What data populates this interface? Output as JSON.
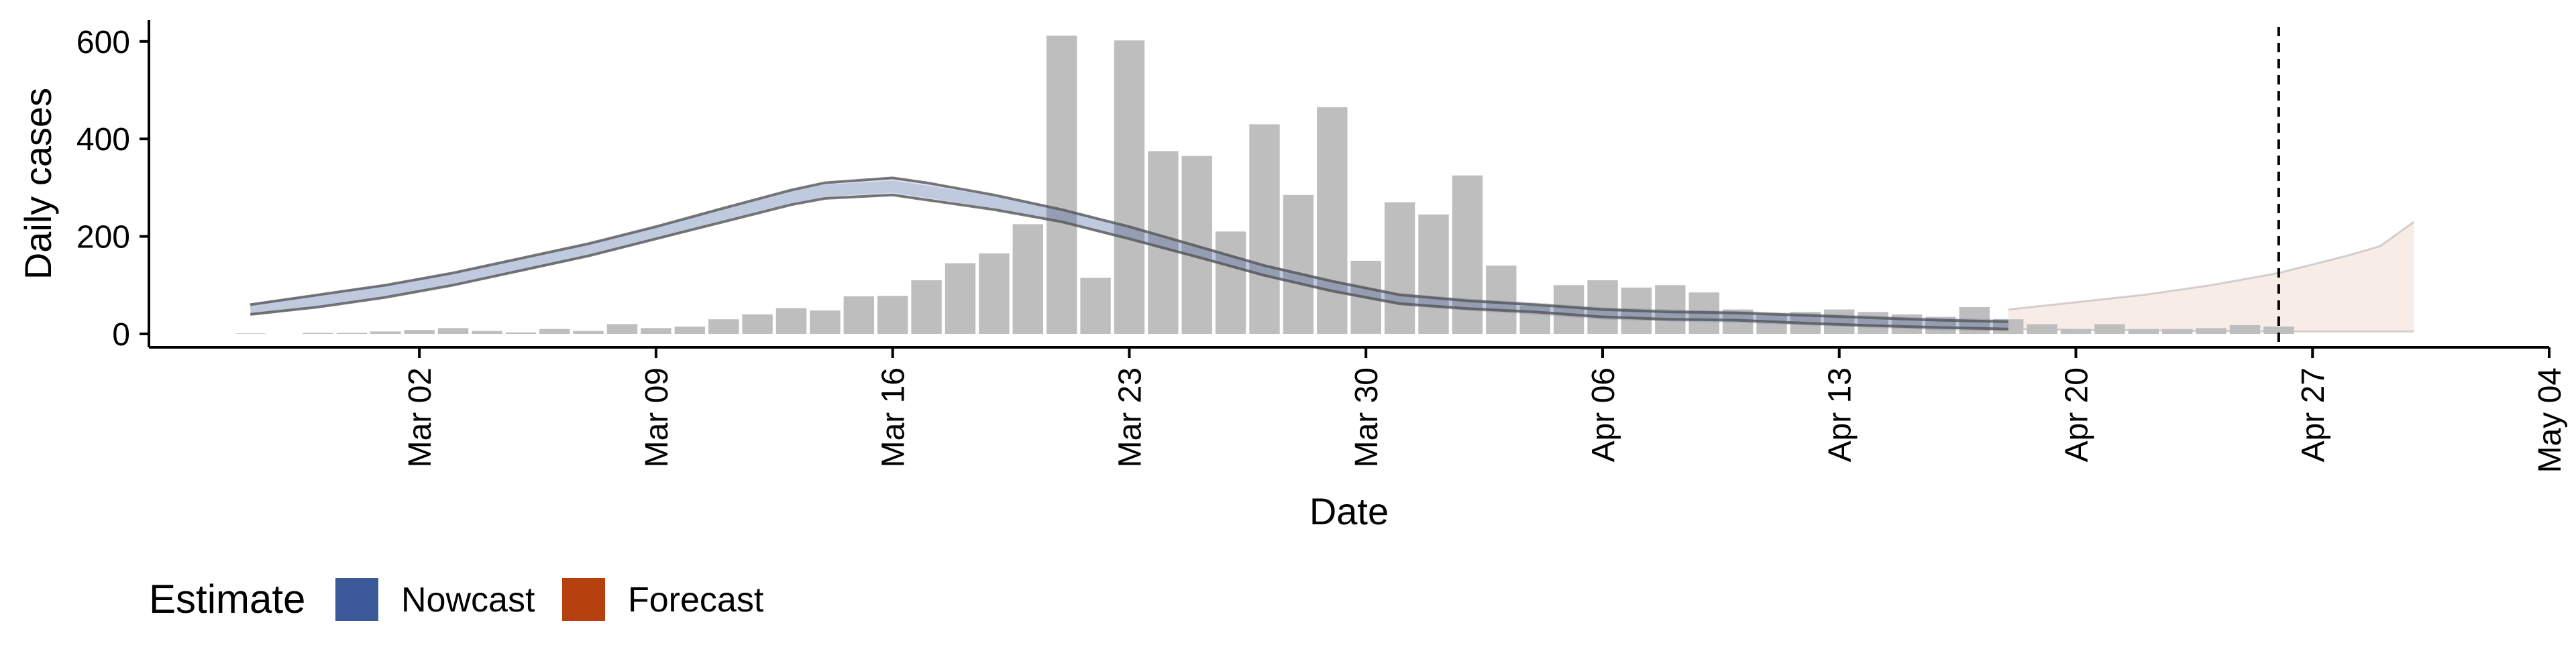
{
  "chart_data": {
    "type": "bar",
    "xlabel": "Date",
    "ylabel": "Daily cases",
    "ylim": [
      0,
      650
    ],
    "yticks": [
      0,
      200,
      400,
      600
    ],
    "xlim": [
      "2020-02-23",
      "2020-05-04"
    ],
    "xtick_dates": [
      "2020-03-02",
      "2020-03-09",
      "2020-03-16",
      "2020-03-23",
      "2020-03-30",
      "2020-04-06",
      "2020-04-13",
      "2020-04-20",
      "2020-04-27",
      "2020-05-04"
    ],
    "xtick_labels": [
      "Mar 02",
      "Mar 09",
      "Mar 16",
      "Mar 23",
      "Mar 30",
      "Apr 06",
      "Apr 13",
      "Apr 20",
      "Apr 27",
      "May 04"
    ],
    "grid": false,
    "vline_date": "2020-04-26",
    "bars": {
      "dates": [
        "2020-02-26",
        "2020-02-27",
        "2020-02-28",
        "2020-02-29",
        "2020-03-01",
        "2020-03-02",
        "2020-03-03",
        "2020-03-04",
        "2020-03-05",
        "2020-03-06",
        "2020-03-07",
        "2020-03-08",
        "2020-03-09",
        "2020-03-10",
        "2020-03-11",
        "2020-03-12",
        "2020-03-13",
        "2020-03-14",
        "2020-03-15",
        "2020-03-16",
        "2020-03-17",
        "2020-03-18",
        "2020-03-19",
        "2020-03-20",
        "2020-03-21",
        "2020-03-22",
        "2020-03-23",
        "2020-03-24",
        "2020-03-25",
        "2020-03-26",
        "2020-03-27",
        "2020-03-28",
        "2020-03-29",
        "2020-03-30",
        "2020-03-31",
        "2020-04-01",
        "2020-04-02",
        "2020-04-03",
        "2020-04-04",
        "2020-04-05",
        "2020-04-06",
        "2020-04-07",
        "2020-04-08",
        "2020-04-09",
        "2020-04-10",
        "2020-04-11",
        "2020-04-12",
        "2020-04-13",
        "2020-04-14",
        "2020-04-15",
        "2020-04-16",
        "2020-04-17",
        "2020-04-18",
        "2020-04-19",
        "2020-04-20",
        "2020-04-21",
        "2020-04-22",
        "2020-04-23",
        "2020-04-24",
        "2020-04-25",
        "2020-04-26"
      ],
      "values": [
        1,
        0,
        2,
        2,
        5,
        8,
        12,
        6,
        3,
        10,
        6,
        20,
        12,
        15,
        30,
        40,
        53,
        48,
        77,
        78,
        110,
        145,
        165,
        225,
        612,
        115,
        602,
        375,
        365,
        210,
        430,
        285,
        465,
        150,
        270,
        245,
        325,
        140,
        58,
        100,
        110,
        95,
        100,
        85,
        50,
        40,
        45,
        50,
        45,
        40,
        35,
        55,
        30,
        20,
        10,
        20,
        10,
        10,
        12,
        18,
        15
      ],
      "color": "#BEBEBE"
    },
    "series": [
      {
        "name": "Nowcast",
        "color": "#3C5A9A",
        "dates": [
          "2020-02-26",
          "2020-02-28",
          "2020-03-01",
          "2020-03-03",
          "2020-03-05",
          "2020-03-07",
          "2020-03-09",
          "2020-03-11",
          "2020-03-13",
          "2020-03-14",
          "2020-03-16",
          "2020-03-17",
          "2020-03-19",
          "2020-03-21",
          "2020-03-23",
          "2020-03-25",
          "2020-03-27",
          "2020-03-29",
          "2020-03-31",
          "2020-04-02",
          "2020-04-04",
          "2020-04-06",
          "2020-04-08",
          "2020-04-10",
          "2020-04-12",
          "2020-04-14",
          "2020-04-16",
          "2020-04-18"
        ],
        "upper": [
          60,
          80,
          100,
          125,
          155,
          185,
          220,
          258,
          295,
          310,
          320,
          310,
          285,
          255,
          220,
          180,
          140,
          108,
          80,
          68,
          60,
          50,
          45,
          43,
          38,
          33,
          28,
          25
        ],
        "lower": [
          40,
          55,
          75,
          100,
          130,
          160,
          195,
          230,
          265,
          278,
          285,
          275,
          255,
          230,
          195,
          158,
          120,
          88,
          62,
          52,
          45,
          35,
          30,
          28,
          22,
          17,
          13,
          10
        ],
        "median": [
          50,
          68,
          88,
          112,
          142,
          172,
          207,
          244,
          280,
          294,
          302,
          292,
          270,
          242,
          207,
          169,
          130,
          98,
          71,
          60,
          52,
          42,
          38,
          35,
          30,
          25,
          20,
          18
        ]
      },
      {
        "name": "Forecast",
        "color": "#B7410E",
        "dates": [
          "2020-04-18",
          "2020-04-20",
          "2020-04-22",
          "2020-04-24",
          "2020-04-26",
          "2020-04-28",
          "2020-04-29",
          "2020-04-30"
        ],
        "upper": [
          50,
          65,
          80,
          100,
          125,
          160,
          180,
          230
        ],
        "lower": [
          10,
          8,
          7,
          6,
          5,
          5,
          5,
          5
        ]
      }
    ],
    "legend": {
      "title": "Estimate",
      "position": "bottom-left",
      "items": [
        {
          "label": "Nowcast",
          "color": "#3C5A9A"
        },
        {
          "label": "Forecast",
          "color": "#B7410E"
        }
      ]
    }
  }
}
